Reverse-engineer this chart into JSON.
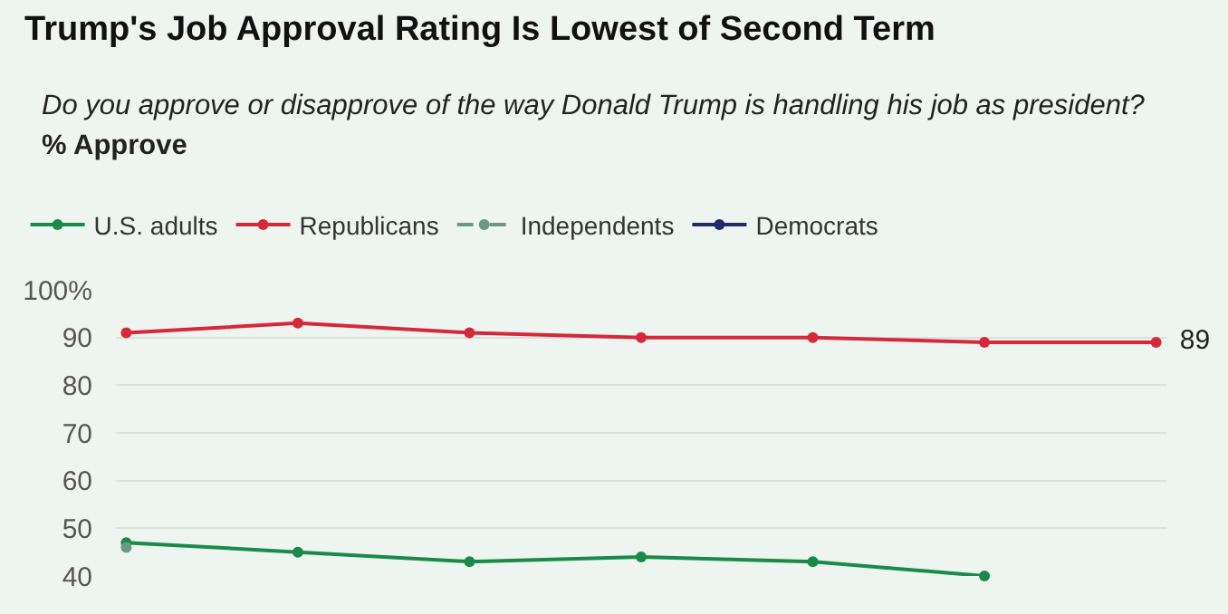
{
  "chart_data": {
    "type": "line",
    "title": "Trump's Job Approval Rating Is Lowest of Second Term",
    "subtitle": "Do you approve or disapprove of the way Donald Trump is handling his job as president?",
    "ylabel": "% Approve",
    "categories": [
      null,
      null,
      null,
      null,
      null,
      null,
      null
    ],
    "series": [
      {
        "name": "U.S. adults",
        "color": "#1a8a4a",
        "values": [
          47,
          45,
          43,
          44,
          43,
          40,
          null
        ]
      },
      {
        "name": "Republicans",
        "color": "#d62839",
        "values": [
          91,
          93,
          91,
          90,
          90,
          89,
          89
        ],
        "value_labels": [
          null,
          null,
          null,
          null,
          null,
          null,
          "89"
        ]
      },
      {
        "name": "Independents",
        "color": "#6a9a86",
        "line_style": "dashed",
        "values": [
          46,
          null,
          null,
          null,
          null,
          null,
          null
        ]
      },
      {
        "name": "Democrats",
        "color": "#1f2a6b",
        "values": [
          null,
          null,
          null,
          null,
          null,
          null,
          null
        ]
      }
    ],
    "ylim": [
      40,
      100
    ],
    "yticks": [
      40,
      50,
      60,
      70,
      80,
      90,
      {
        "value": 100,
        "label": "100%"
      }
    ],
    "grid": "y",
    "legend": "top left",
    "marker": "circle",
    "line_style": "solid"
  }
}
